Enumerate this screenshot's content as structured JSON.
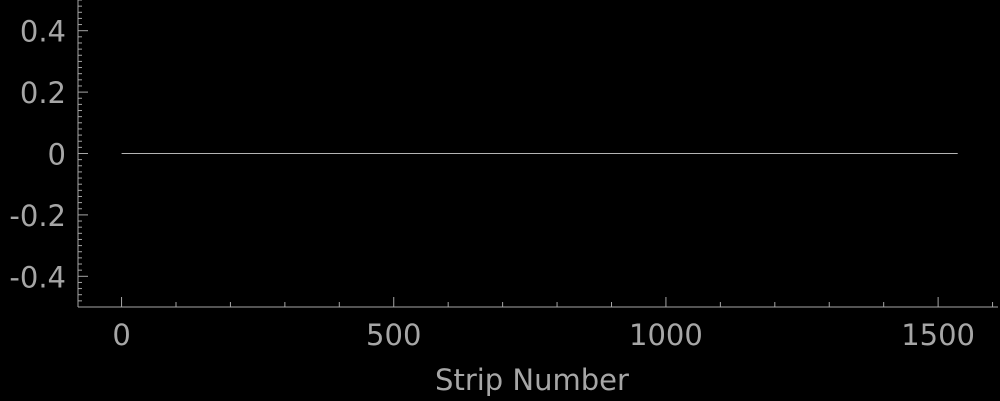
{
  "chart_data": {
    "type": "line",
    "title": "",
    "xlabel": "Strip Number",
    "ylabel": "",
    "xlim": [
      -80,
      1610
    ],
    "ylim": [
      -0.5,
      0.5
    ],
    "x_ticks": [
      0,
      500,
      1000,
      1500
    ],
    "x_tick_labels": [
      "0",
      "500",
      "1000",
      "1500"
    ],
    "y_ticks": [
      0.4,
      0.2,
      0,
      -0.2,
      -0.4
    ],
    "y_tick_labels": [
      "0.4",
      "0.2",
      "0",
      "-0.2",
      "-0.4"
    ],
    "grid": false,
    "series": [
      {
        "x": [
          0,
          1536
        ],
        "y": [
          0,
          0
        ]
      }
    ],
    "colors": {
      "background": "#000000",
      "axis": "#a6a6a6",
      "line": "#b4b4b4"
    }
  }
}
